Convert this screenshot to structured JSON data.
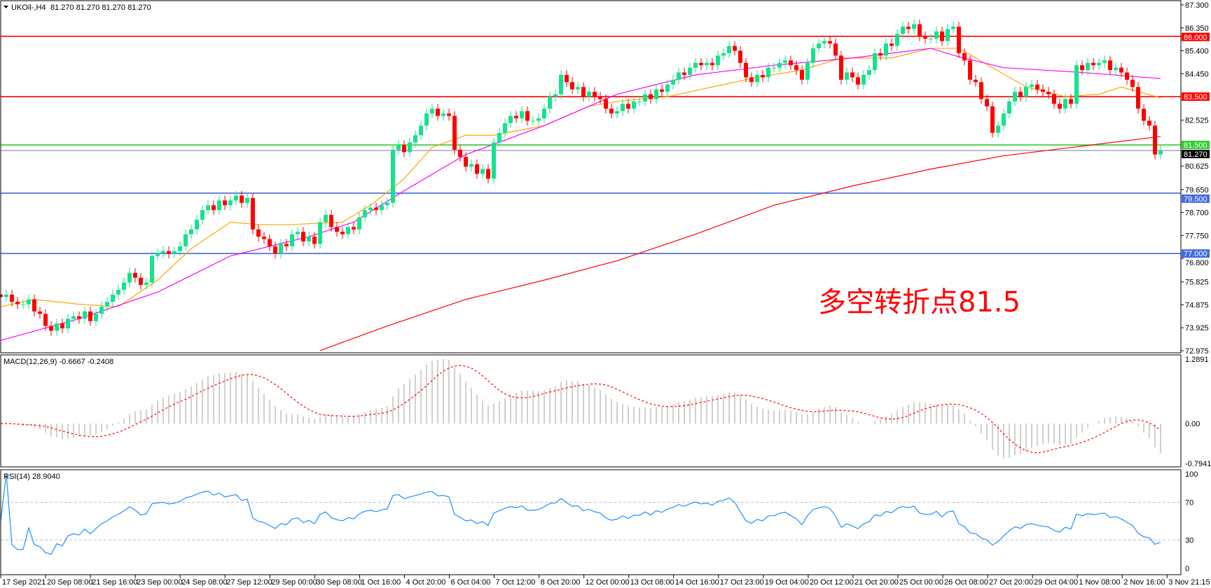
{
  "header": {
    "symbol": "UKOil-,H4",
    "ohlc_text": "81.270 81.270 81.270 81.270"
  },
  "macd_header": "MACD(12,26,9) -0.6667 -0.2408",
  "rsi_header": "RSI(14) 28.9040",
  "annotation": "多空转折点81.5",
  "colors": {
    "bull": "#14e38c",
    "bear": "#ff0000",
    "ma_fast": "#ffa500",
    "ma_mid": "#ff00ff",
    "ma_slow": "#ff0000",
    "macd_hist": "#c0c0c0",
    "macd_signal": "#ff0000",
    "rsi": "#1e90ff"
  },
  "chart_data": {
    "type": "candlestick",
    "price_axis": {
      "range": [
        72.975,
        87.3
      ],
      "ticks": [
        "87.300",
        "86.350",
        "85.400",
        "84.450",
        "82.525",
        "80.625",
        "79.650",
        "78.700",
        "77.750",
        "76.800",
        "75.825",
        "74.875",
        "73.925",
        "72.975"
      ]
    },
    "time_axis": [
      "17 Sep 2021",
      "20 Sep 08:00",
      "21 Sep 16:00",
      "23 Sep 00:00",
      "24 Sep 08:00",
      "27 Sep 12:00",
      "29 Sep 00:00",
      "30 Sep 08:00",
      "1 Oct 16:00",
      "4 Oct 20:00",
      "6 Oct 04:00",
      "7 Oct 12:00",
      "8 Oct 20:00",
      "12 Oct 00:00",
      "13 Oct 08:00",
      "14 Oct 16:00",
      "17 Oct 23:00",
      "19 Oct 04:00",
      "20 Oct 12:00",
      "21 Oct 20:00",
      "25 Oct 00:00",
      "26 Oct 08:00",
      "27 Oct 20:00",
      "29 Oct 04:00",
      "1 Nov 08:00",
      "2 Nov 16:00",
      "3 Nov 21:15"
    ],
    "closes": [
      75.2,
      75.3,
      75.0,
      74.9,
      74.9,
      75.1,
      74.6,
      74.5,
      74.0,
      73.8,
      74.1,
      73.9,
      74.3,
      74.4,
      74.3,
      74.6,
      74.2,
      74.5,
      74.8,
      75.0,
      75.3,
      75.5,
      75.8,
      76.2,
      76.0,
      75.7,
      75.8,
      76.9,
      77.0,
      77.1,
      77.0,
      77.1,
      77.3,
      77.8,
      78.0,
      78.4,
      78.8,
      79.0,
      78.8,
      79.2,
      79.0,
      79.2,
      79.4,
      79.1,
      79.3,
      78.0,
      77.7,
      77.6,
      77.3,
      77.0,
      77.4,
      77.3,
      77.8,
      77.9,
      77.5,
      77.7,
      77.4,
      78.3,
      78.6,
      78.1,
      77.9,
      77.8,
      78.1,
      78.0,
      78.5,
      78.8,
      78.9,
      78.8,
      79.0,
      79.1,
      81.3,
      81.5,
      81.2,
      81.6,
      81.9,
      82.3,
      82.8,
      83.0,
      82.7,
      82.8,
      82.7,
      81.3,
      81.0,
      80.6,
      80.7,
      80.3,
      80.5,
      80.1,
      81.6,
      82.0,
      82.4,
      82.7,
      82.6,
      82.9,
      82.5,
      82.5,
      82.6,
      83.0,
      83.5,
      83.6,
      84.4,
      84.1,
      83.8,
      83.9,
      83.5,
      83.7,
      83.5,
      83.4,
      83.0,
      82.8,
      82.9,
      83.2,
      83.0,
      83.3,
      83.3,
      83.6,
      83.4,
      83.8,
      83.7,
      84.0,
      84.2,
      84.5,
      84.4,
      84.7,
      84.9,
      84.8,
      84.9,
      84.8,
      85.2,
      85.3,
      85.6,
      85.4,
      84.9,
      84.3,
      84.1,
      84.4,
      84.3,
      84.7,
      84.7,
      84.9,
      85.0,
      84.8,
      84.6,
      84.2,
      84.9,
      85.5,
      85.7,
      85.8,
      85.7,
      85.2,
      84.2,
      84.5,
      84.3,
      84.0,
      84.4,
      84.6,
      85.3,
      85.2,
      85.7,
      85.6,
      86.1,
      86.4,
      86.3,
      86.5,
      86.0,
      85.9,
      85.9,
      86.2,
      85.8,
      86.3,
      86.4,
      85.3,
      85.0,
      84.2,
      84.1,
      83.4,
      83.1,
      82.0,
      82.3,
      82.8,
      83.3,
      83.7,
      83.5,
      83.9,
      84.0,
      83.8,
      83.7,
      83.6,
      83.2,
      83.0,
      83.4,
      83.2,
      84.8,
      84.6,
      84.9,
      84.8,
      84.9,
      85.0,
      84.6,
      84.7,
      84.5,
      84.2,
      83.9,
      83.0,
      82.5,
      82.3,
      81.1,
      81.27
    ],
    "moving_averages": [
      {
        "color_key": "ma_fast",
        "points": [
          [
            0,
            74.8
          ],
          [
            6,
            75.1
          ],
          [
            14,
            74.9
          ],
          [
            21,
            74.8
          ],
          [
            28,
            75.9
          ],
          [
            34,
            77.2
          ],
          [
            41,
            78.3
          ],
          [
            46,
            78.2
          ],
          [
            52,
            78.2
          ],
          [
            61,
            78.3
          ],
          [
            66,
            79.0
          ],
          [
            72,
            80.1
          ],
          [
            77,
            81.4
          ],
          [
            83,
            81.9
          ],
          [
            88,
            81.9
          ],
          [
            97,
            82.3
          ],
          [
            105,
            83.1
          ],
          [
            110,
            83.3
          ],
          [
            119,
            83.5
          ],
          [
            127,
            83.9
          ],
          [
            135,
            84.3
          ],
          [
            143,
            84.6
          ],
          [
            150,
            85.1
          ],
          [
            159,
            85.1
          ],
          [
            166,
            85.5
          ],
          [
            171,
            85.5
          ],
          [
            177,
            84.7
          ],
          [
            183,
            83.9
          ],
          [
            190,
            83.5
          ],
          [
            196,
            83.6
          ],
          [
            200,
            83.9
          ],
          [
            207,
            83.45
          ]
        ]
      },
      {
        "color_key": "ma_mid",
        "points": [
          [
            0,
            73.4
          ],
          [
            14,
            74.3
          ],
          [
            28,
            75.4
          ],
          [
            41,
            76.9
          ],
          [
            55,
            77.7
          ],
          [
            63,
            78.3
          ],
          [
            72,
            79.6
          ],
          [
            83,
            81.1
          ],
          [
            97,
            82.3
          ],
          [
            110,
            83.6
          ],
          [
            124,
            84.4
          ],
          [
            138,
            84.8
          ],
          [
            152,
            85.1
          ],
          [
            166,
            85.5
          ],
          [
            171,
            85.15
          ],
          [
            179,
            84.7
          ],
          [
            193,
            84.5
          ],
          [
            207,
            84.25
          ]
        ]
      },
      {
        "color_key": "ma_slow",
        "points": [
          [
            57,
            72.98
          ],
          [
            69,
            74.0
          ],
          [
            83,
            75.1
          ],
          [
            97,
            75.9
          ],
          [
            110,
            76.7
          ],
          [
            124,
            77.8
          ],
          [
            138,
            79.0
          ],
          [
            152,
            79.8
          ],
          [
            166,
            80.5
          ],
          [
            179,
            81.05
          ],
          [
            193,
            81.45
          ],
          [
            207,
            81.85
          ]
        ]
      }
    ],
    "levels": [
      {
        "value": 86.0,
        "label": "86.000",
        "color": "#ff0000"
      },
      {
        "value": 83.5,
        "label": "83.500",
        "color": "#ff0000"
      },
      {
        "value": 81.5,
        "label": "81.500",
        "color": "#32cd32"
      },
      {
        "value": 79.5,
        "label": "79.500",
        "color": "#4169e1"
      },
      {
        "value": 77.0,
        "label": "77.000",
        "color": "#4169e1"
      }
    ],
    "current_price": {
      "value": 81.27,
      "label": "81.270"
    },
    "macd": {
      "params": [
        12,
        26,
        9
      ],
      "range": [
        -0.7941,
        1.2891
      ],
      "ticks": [
        "1.2891",
        "0.00",
        "-0.7941"
      ]
    },
    "rsi": {
      "period": 14,
      "range": [
        0,
        100
      ],
      "levels": [
        30,
        70
      ],
      "ticks": [
        "100",
        "70",
        "30",
        "0"
      ]
    }
  }
}
